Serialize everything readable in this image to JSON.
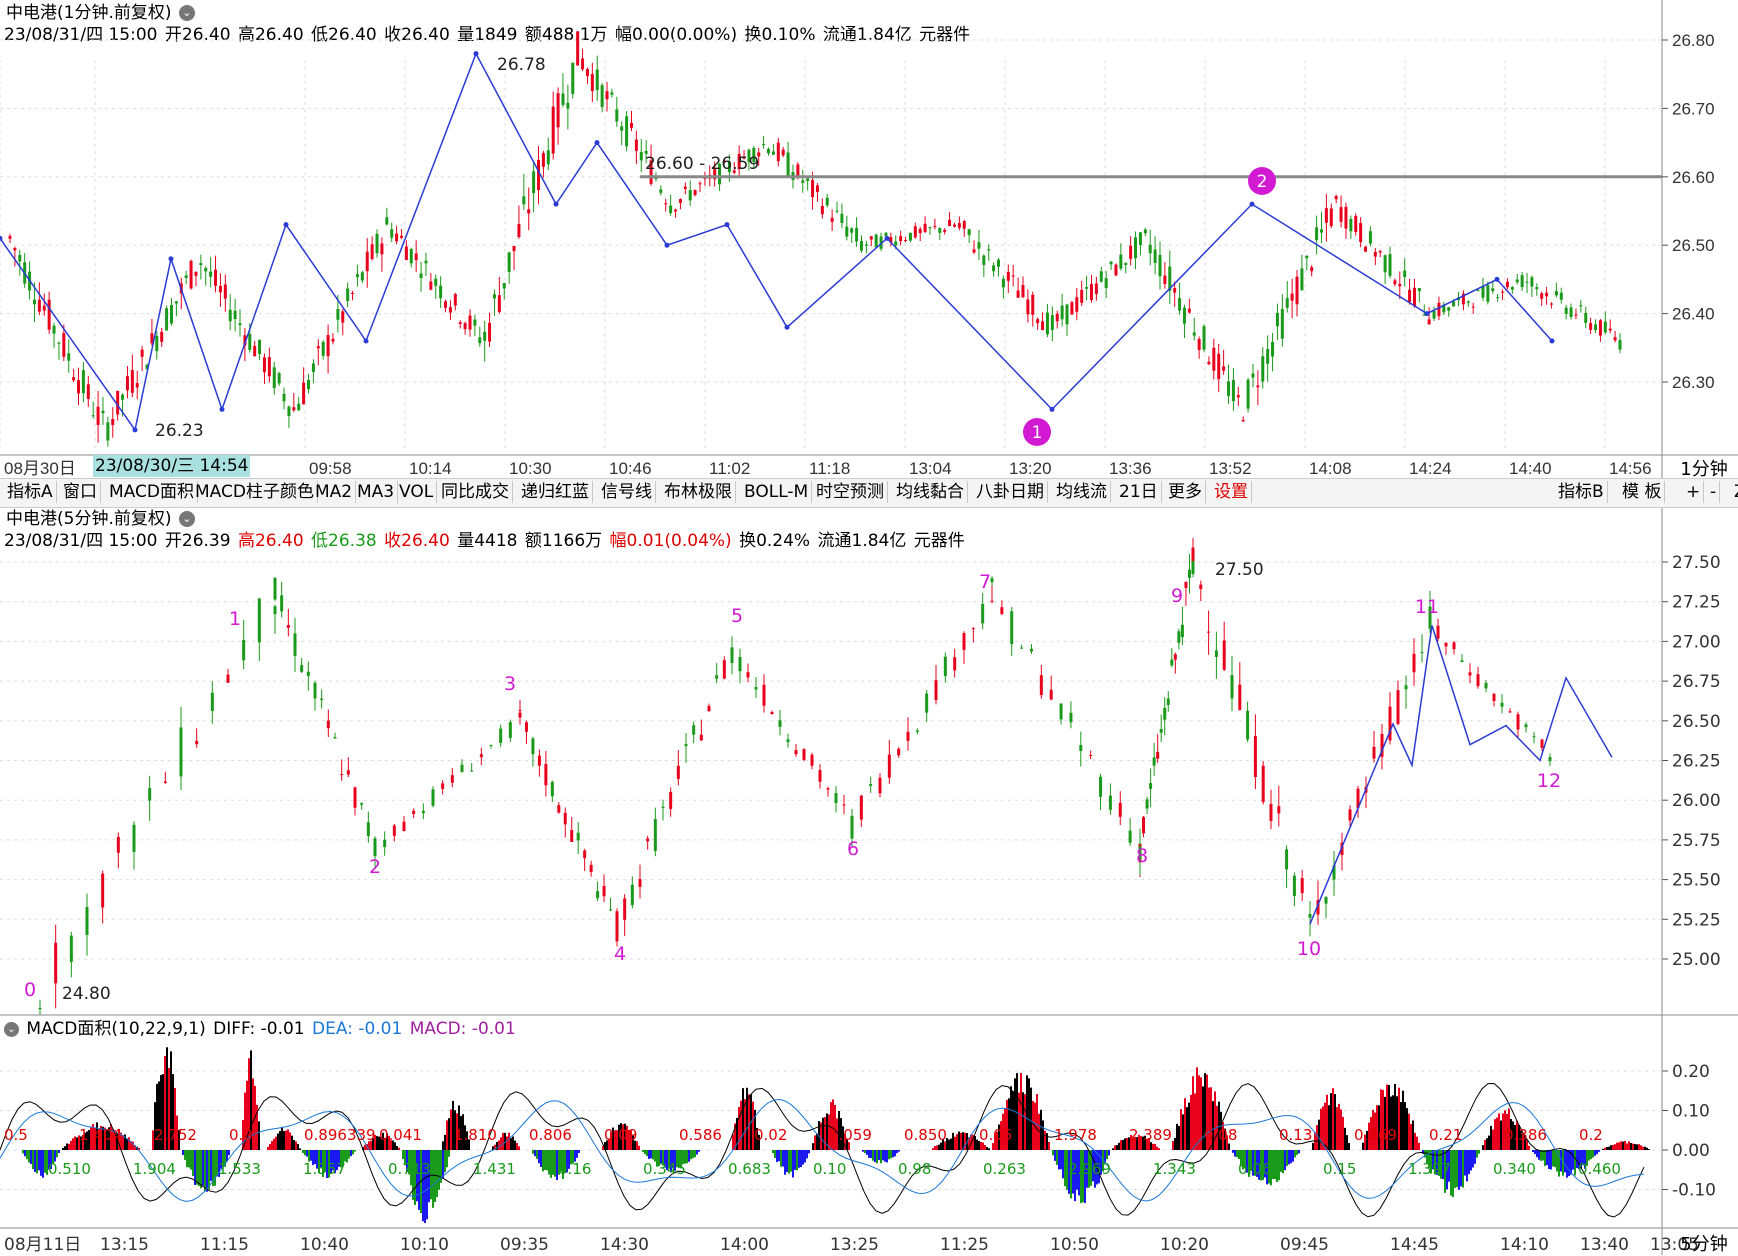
{
  "top_panel": {
    "title": "中电港(1分钟.前复权)",
    "info": {
      "date": "23/08/31/四 15:00",
      "open": "开26.40",
      "high": "高26.40",
      "low": "低26.40",
      "close": "收26.40",
      "volume": "量1849",
      "amount": "额488.1万",
      "change": "幅0.00(0.00%)",
      "turnover": "换0.10%",
      "float": "流通1.84亿",
      "industry": "元器件"
    },
    "timeframe": "1分钟",
    "time_chip": "23/08/30/三 14:54",
    "time_axis": [
      "08月30日",
      "2",
      "09:58",
      "10:14",
      "10:30",
      "10:46",
      "11:02",
      "11:18",
      "13:04",
      "13:20",
      "13:36",
      "13:52",
      "14:08",
      "14:24",
      "14:40",
      "14:56"
    ],
    "price_axis": [
      "26.80",
      "26.70",
      "26.60",
      "26.50",
      "26.40",
      "26.30"
    ],
    "annotations": {
      "high": "26.78",
      "low": "26.23",
      "zone": "26.60 - 26.59",
      "circle1": "1",
      "circle2": "2"
    }
  },
  "toolbar": {
    "items": [
      "指标A",
      "窗口",
      "MACD面积",
      "MACD柱子颜色",
      "MA2",
      "MA3",
      "VOL",
      "同比成交",
      "递归红蓝",
      "信号线",
      "布林极限",
      "BOLL-M",
      "时空预测",
      "均线黏合",
      "八卦日期",
      "均线流",
      "21日",
      "更多",
      "设置"
    ],
    "right_items": [
      "指标B",
      "模 板",
      "+",
      "-",
      "Z"
    ]
  },
  "mid_panel": {
    "title": "中电港(5分钟.前复权)",
    "info": {
      "date": "23/08/31/四 15:00",
      "open": "开26.39",
      "high": "高26.40",
      "low": "低26.38",
      "close": "收26.40",
      "volume": "量4418",
      "amount": "额1166万",
      "change": "幅0.01(0.04%)",
      "turnover": "换0.24%",
      "float": "流通1.84亿",
      "industry": "元器件"
    },
    "price_axis": [
      "27.50",
      "27.25",
      "27.00",
      "26.75",
      "26.50",
      "26.25",
      "26.00",
      "25.75",
      "25.50",
      "25.25",
      "25.00"
    ],
    "annotations": {
      "high": "27.50",
      "low": "24.80"
    },
    "wave_labels": [
      "0",
      "1",
      "2",
      "3",
      "4",
      "5",
      "6",
      "7",
      "8",
      "9",
      "10",
      "11",
      "12"
    ]
  },
  "macd_panel": {
    "title": "MACD面积(10,22,9,1)",
    "diff": "DIFF: -0.01",
    "dea": "DEA: -0.01",
    "macd": "MACD: -0.01",
    "axis": [
      "0.20",
      "0.10",
      "0.00",
      "-0.10"
    ],
    "red_labels": [
      "0.5",
      "1.404",
      "2.752",
      "0.0",
      "0.896339",
      "0.041",
      "1.810",
      "0.806",
      "0.09",
      "0.586",
      "0.02",
      "1.059",
      "0.850",
      "0.05",
      "1.978",
      "2.389",
      "0.08",
      "0.13",
      "0.869",
      "0.21",
      "0.386",
      "0.2"
    ],
    "green_labels": [
      "0.510",
      "1.904",
      "1.533",
      "1.357",
      "0.713",
      "1.431",
      "0.16",
      "0.345",
      "0.683",
      "0.10",
      "0.98",
      "0.263",
      "2.969",
      "1.343",
      "0.06",
      "0.15",
      "1.397",
      "0.340",
      "0.460"
    ],
    "time_axis": [
      "08月11日",
      "13:15",
      "11:15",
      "10:40",
      "10:10",
      "09:35",
      "14:30",
      "14:00",
      "13:25",
      "11:25",
      "10:50",
      "10:20",
      "09:45",
      "14:45",
      "14:10",
      "13:40",
      "13:05"
    ],
    "timeframe": "5分钟"
  },
  "chart_data": [
    {
      "type": "line",
      "title": "中电港(1分钟.前复权)",
      "ylim": [
        26.2,
        26.84
      ],
      "zigzag": {
        "x": [
          "08月30日",
          "2",
          "09:58",
          "10:14",
          "10:30",
          "10:46",
          "11:02",
          "11:18",
          "13:04",
          "13:20",
          "13:36",
          "13:52",
          "14:08",
          "14:24",
          "14:40",
          "14:56"
        ],
        "points": [
          26.51,
          26.23,
          26.48,
          26.26,
          26.53,
          26.36,
          26.78,
          26.56,
          26.65,
          26.5,
          26.53,
          26.38,
          26.51,
          26.26,
          26.56,
          26.4,
          26.45,
          26.36
        ]
      },
      "resistance": 26.6
    },
    {
      "type": "line",
      "title": "中电港(5分钟.前复权)",
      "ylim": [
        24.8,
        27.55
      ],
      "wave_points": [
        {
          "label": "0",
          "value": 24.8
        },
        {
          "label": "1",
          "value": 27.3
        },
        {
          "label": "2",
          "value": 25.7
        },
        {
          "label": "3",
          "value": 26.5
        },
        {
          "label": "4",
          "value": 25.2
        },
        {
          "label": "5",
          "value": 26.95
        },
        {
          "label": "6",
          "value": 25.85
        },
        {
          "label": "7",
          "value": 27.3
        },
        {
          "label": "8",
          "value": 25.7
        },
        {
          "label": "9",
          "value": 27.5
        },
        {
          "label": "10",
          "value": 25.22
        },
        {
          "label": "11",
          "value": 27.1
        },
        {
          "label": "12",
          "value": 26.27
        }
      ]
    },
    {
      "type": "bar",
      "title": "MACD面积(10,22,9,1)",
      "ylim": [
        -0.15,
        0.27
      ],
      "series": [
        {
          "name": "DIFF",
          "value": -0.01
        },
        {
          "name": "DEA",
          "value": -0.01
        },
        {
          "name": "MACD",
          "value": -0.01
        }
      ]
    }
  ],
  "colors": {
    "up": "#e8001c",
    "down": "#1a9a1a",
    "zigzag": "#2a3bd6",
    "mark": "#d31ad3",
    "dea": "#1a78d6",
    "diff": "#000000",
    "neg_area": "#1a1af0"
  }
}
